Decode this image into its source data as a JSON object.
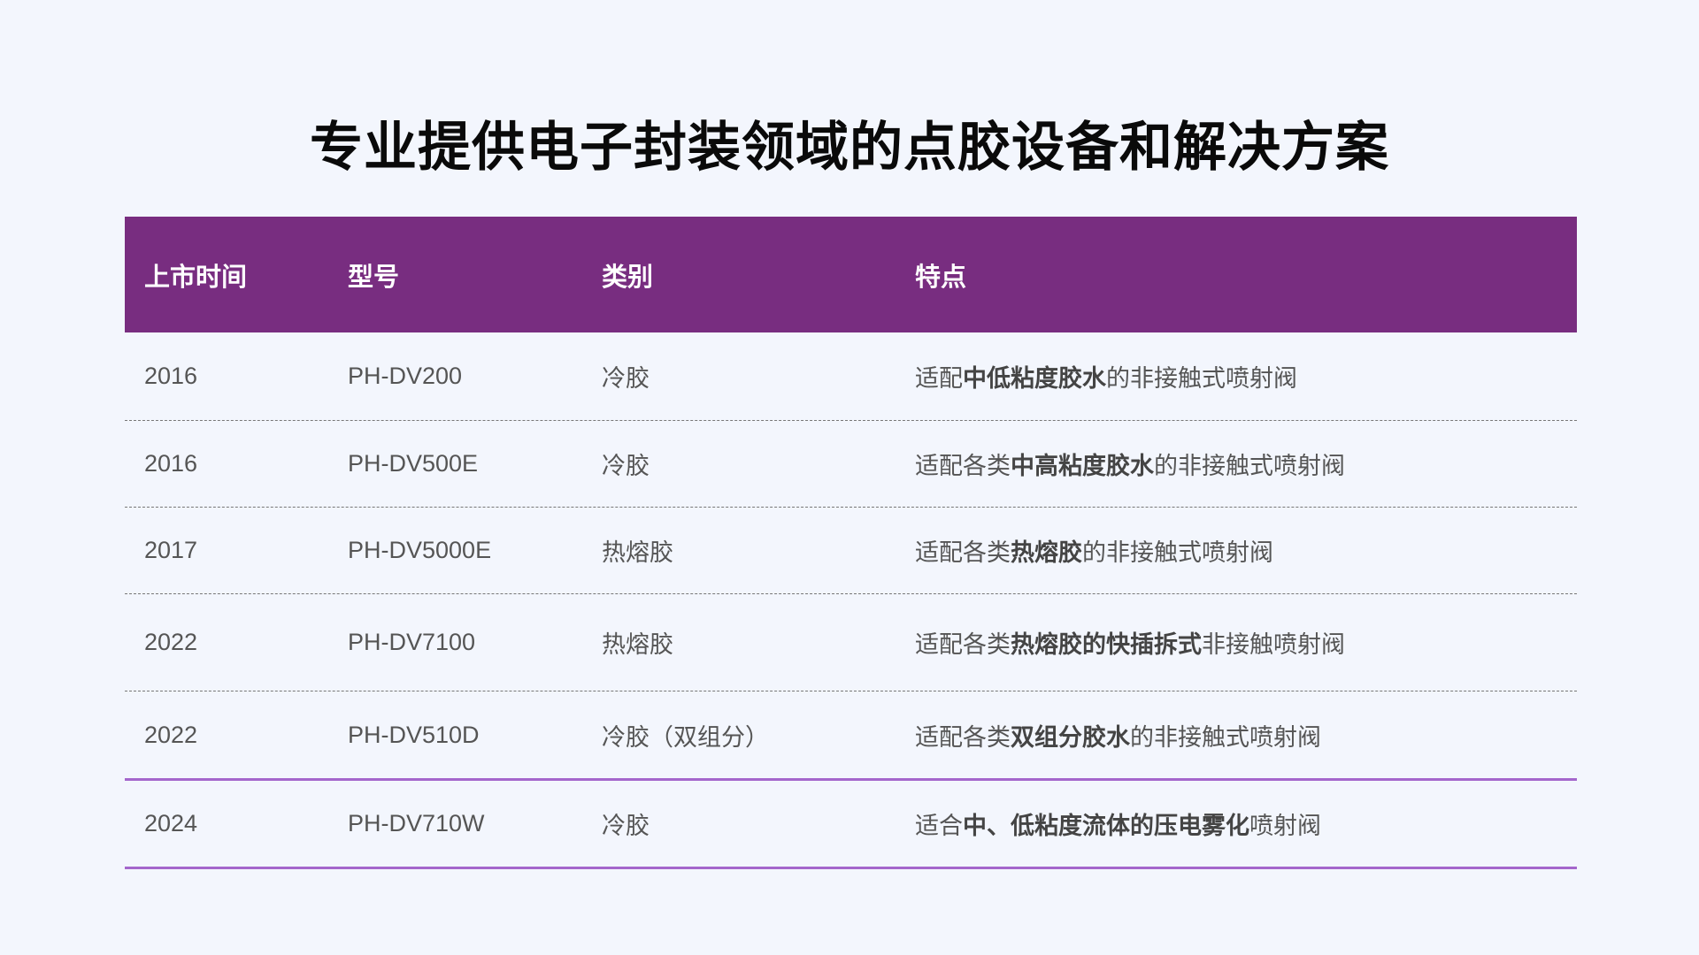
{
  "title": "专业提供电子封装领域的点胶设备和解决方案",
  "colors": {
    "header_bg": "#782d80",
    "accent_line": "#a466cc",
    "background": "#f3f6fd"
  },
  "table": {
    "headers": [
      "上市时间",
      "型号",
      "类别",
      "特点"
    ],
    "rows": [
      {
        "year": "2016",
        "model": "PH-DV200",
        "category": "冷胶",
        "feature": [
          {
            "t": "适配"
          },
          {
            "t": "中低粘度胶水",
            "b": true
          },
          {
            "t": "的非接触式喷射阀"
          }
        ]
      },
      {
        "year": "2016",
        "model": "PH-DV500E",
        "category": "冷胶",
        "feature": [
          {
            "t": "适配各类"
          },
          {
            "t": "中高粘度胶水",
            "b": true
          },
          {
            "t": "的非接触式喷射阀"
          }
        ]
      },
      {
        "year": "2017",
        "model": "PH-DV5000E",
        "category": "热熔胶",
        "feature": [
          {
            "t": "适配各类"
          },
          {
            "t": "热熔胶",
            "b": true
          },
          {
            "t": "的非接触式喷射阀"
          }
        ]
      },
      {
        "year": "2022",
        "model": "PH-DV7100",
        "category": "热熔胶",
        "feature": [
          {
            "t": "适配各类"
          },
          {
            "t": "热熔胶的快插拆式",
            "b": true
          },
          {
            "t": "非接触喷射阀"
          }
        ]
      },
      {
        "year": "2022",
        "model": "PH-DV510D",
        "category": "冷胶（双组分）",
        "feature": [
          {
            "t": "适配各类"
          },
          {
            "t": "双组分胶水",
            "b": true
          },
          {
            "t": "的非接触式喷射阀"
          }
        ]
      },
      {
        "year": "2024",
        "model": "PH-DV710W",
        "category": "冷胶",
        "feature": [
          {
            "t": "适合"
          },
          {
            "t": "中、低粘度流体的压电雾化",
            "b": true
          },
          {
            "t": "喷射阀"
          }
        ]
      }
    ]
  }
}
